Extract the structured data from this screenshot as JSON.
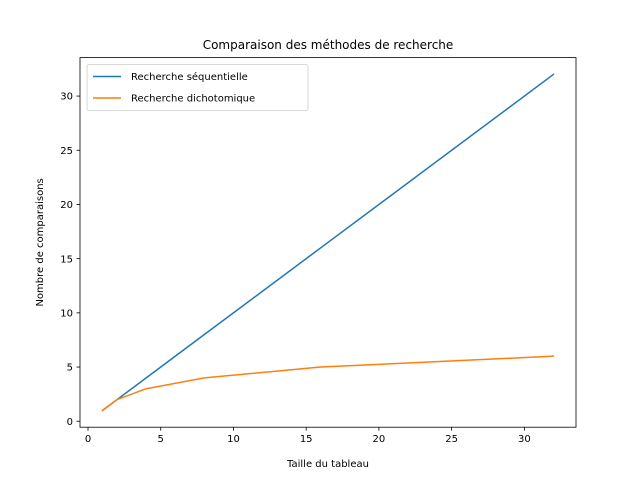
{
  "chart_data": {
    "type": "line",
    "title": "Comparaison des méthodes de recherche",
    "xlabel": "Taille du tableau",
    "ylabel": "Nombre de comparaisons",
    "xlim": [
      -0.55,
      33.55
    ],
    "ylim": [
      -0.55,
      33.55
    ],
    "xticks": [
      0,
      5,
      10,
      15,
      20,
      25,
      30
    ],
    "yticks": [
      0,
      5,
      10,
      15,
      20,
      25,
      30
    ],
    "grid": false,
    "legend_position": "top-left",
    "series": [
      {
        "name": "Recherche séquentielle",
        "color": "#1f77b4",
        "x": [
          1,
          2,
          4,
          8,
          16,
          32
        ],
        "y": [
          1,
          2,
          4,
          8,
          16,
          32
        ]
      },
      {
        "name": "Recherche dichotomique",
        "color": "#ff7f0e",
        "x": [
          1,
          2,
          4,
          8,
          16,
          32
        ],
        "y": [
          1,
          2,
          3,
          4,
          5,
          6
        ]
      }
    ]
  }
}
